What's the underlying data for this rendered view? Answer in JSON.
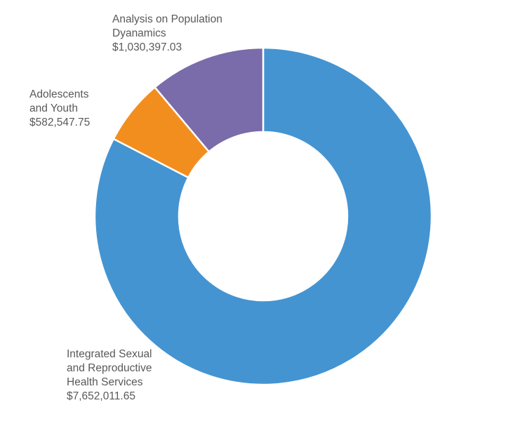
{
  "chart_data": {
    "type": "pie",
    "variant": "donut",
    "title": "",
    "slices": [
      {
        "label_lines": [
          "Integrated Sexual",
          "and Reproductive",
          "Health Services"
        ],
        "value": 7652011.65,
        "value_label": "$7,652,011.65",
        "color": "#4494d2"
      },
      {
        "label_lines": [
          "Adolescents",
          "and Youth"
        ],
        "value": 582547.75,
        "value_label": "$582,547.75",
        "color": "#f28e1e"
      },
      {
        "label_lines": [
          "Analysis on Population",
          "Dyanamics"
        ],
        "value": 1030397.03,
        "value_label": "$1,030,397.03",
        "color": "#7a6baa"
      }
    ],
    "legend": "none"
  }
}
